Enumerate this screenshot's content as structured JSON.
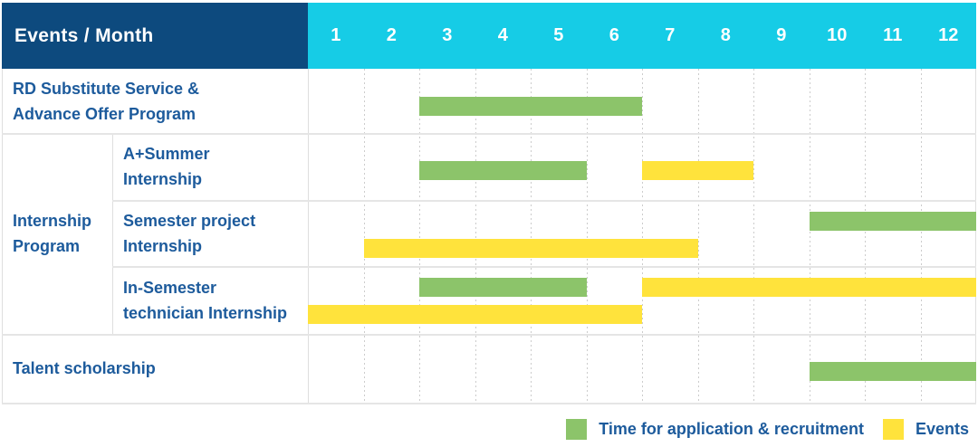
{
  "header": {
    "title": "Events / Month",
    "months": [
      "1",
      "2",
      "3",
      "4",
      "5",
      "6",
      "7",
      "8",
      "9",
      "10",
      "11",
      "12"
    ]
  },
  "colors": {
    "header_bg": "#0d4a7e",
    "months_bg": "#16cce6",
    "header_text": "#ffffff",
    "label_text": "#1d5b9c",
    "green": "#8cc46a",
    "yellow": "#ffe33c",
    "row_line": "#e5e5e5",
    "grid_dotted": "#cccccc"
  },
  "legend": {
    "items": [
      {
        "color": "green",
        "label": "Time for application & recruitment"
      },
      {
        "color": "yellow",
        "label": "Events"
      }
    ]
  },
  "chart_data": {
    "type": "gantt",
    "unit": "month",
    "x_range": [
      1,
      12
    ],
    "column_header": "Events / Month",
    "month_ticks": [
      1,
      2,
      3,
      4,
      5,
      6,
      7,
      8,
      9,
      10,
      11,
      12
    ],
    "groups": [
      {
        "label_lines": [
          "Internship",
          "Program"
        ],
        "row_indexes": [
          1,
          2,
          3
        ]
      }
    ],
    "rows": [
      {
        "label_lines": [
          "RD Substitute Service &",
          "Advance Offer Program"
        ],
        "in_group": false,
        "bars": [
          {
            "kind": "application",
            "color": "green",
            "start_month": 3,
            "end_month": 6,
            "track": "single"
          }
        ]
      },
      {
        "label_lines": [
          "A+Summer",
          "Internship"
        ],
        "in_group": true,
        "bars": [
          {
            "kind": "application",
            "color": "green",
            "start_month": 3,
            "end_month": 5,
            "track": "single"
          },
          {
            "kind": "event",
            "color": "yellow",
            "start_month": 7,
            "end_month": 8,
            "track": "single"
          }
        ]
      },
      {
        "label_lines": [
          "Semester project",
          "Internship"
        ],
        "in_group": true,
        "bars": [
          {
            "kind": "application",
            "color": "green",
            "start_month": 10,
            "end_month": 12,
            "track": "top"
          },
          {
            "kind": "event",
            "color": "yellow",
            "start_month": 2,
            "end_month": 7,
            "track": "bottom"
          }
        ]
      },
      {
        "label_lines": [
          "In-Semester",
          "technician Internship"
        ],
        "in_group": true,
        "bars": [
          {
            "kind": "application",
            "color": "green",
            "start_month": 3,
            "end_month": 5,
            "track": "top"
          },
          {
            "kind": "event",
            "color": "yellow",
            "start_month": 7,
            "end_month": 12,
            "track": "top"
          },
          {
            "kind": "event",
            "color": "yellow",
            "start_month": 1,
            "end_month": 6,
            "track": "bottom"
          }
        ]
      },
      {
        "label_lines": [
          "Talent scholarship"
        ],
        "in_group": false,
        "bars": [
          {
            "kind": "application",
            "color": "green",
            "start_month": 10,
            "end_month": 12,
            "track": "single"
          }
        ]
      }
    ]
  }
}
